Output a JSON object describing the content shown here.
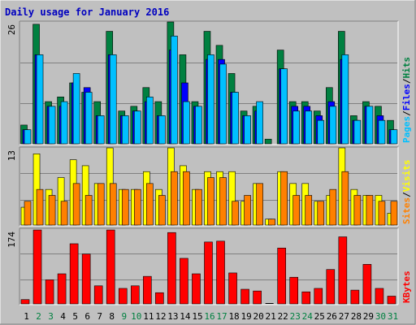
{
  "title": "Daily usage for January 2016",
  "colors": {
    "background": "#c0c0c0",
    "plot_bg": "#c0c0c0",
    "title_text": "#0000c0",
    "hits": "#008040",
    "files": "#0000ff",
    "pages": "#00c0ff",
    "visits": "#ffff00",
    "sites": "#ff8000",
    "kbytes": "#ff0000",
    "day_normal": "#000000",
    "day_weekend": "#008040"
  },
  "chart_data": [
    {
      "type": "bar",
      "name": "hits-files-pages",
      "y_max_label": "26",
      "ylim": [
        0,
        26
      ],
      "legend": [
        {
          "label": "Pages",
          "color": "#00c0ff"
        },
        {
          "label": "/",
          "color": "#000000"
        },
        {
          "label": "Files",
          "color": "#0000ff"
        },
        {
          "label": "/",
          "color": "#000000"
        },
        {
          "label": "Hits",
          "color": "#008040"
        }
      ],
      "categories": [
        "1",
        "2",
        "3",
        "4",
        "5",
        "6",
        "7",
        "8",
        "9",
        "10",
        "11",
        "12",
        "13",
        "14",
        "15",
        "16",
        "17",
        "18",
        "19",
        "20",
        "21",
        "22",
        "23",
        "24",
        "25",
        "26",
        "27",
        "28",
        "29",
        "30",
        "31"
      ],
      "series": [
        {
          "name": "Hits",
          "values": [
            4,
            25.5,
            9,
            10,
            13,
            11,
            9,
            24,
            7,
            8,
            12,
            9,
            26,
            19,
            9,
            24,
            21,
            15,
            7,
            8,
            1,
            20,
            9,
            9,
            7,
            12,
            24,
            6,
            9,
            8,
            5
          ]
        },
        {
          "name": "Files",
          "values": [
            3,
            19,
            8,
            8,
            13,
            12,
            6,
            19,
            6,
            7,
            9,
            6,
            20,
            13,
            8,
            18,
            18,
            11,
            6,
            7,
            0,
            16,
            8,
            8,
            6,
            9,
            18,
            5,
            8,
            6,
            3
          ]
        },
        {
          "name": "Pages",
          "values": [
            3,
            19,
            8,
            9,
            15,
            11,
            6,
            19,
            6,
            7,
            10,
            6,
            23,
            9,
            8,
            19,
            17,
            11,
            6,
            9,
            0,
            16,
            7,
            7,
            5,
            8,
            19,
            5,
            8,
            5,
            3
          ]
        }
      ]
    },
    {
      "type": "bar",
      "name": "visits-sites",
      "y_max_label": "13",
      "ylim": [
        0,
        13
      ],
      "legend": [
        {
          "label": "Sites",
          "color": "#ff8000"
        },
        {
          "label": "/",
          "color": "#000000"
        },
        {
          "label": "Visits",
          "color": "#ffff00"
        }
      ],
      "categories": [
        "1",
        "2",
        "3",
        "4",
        "5",
        "6",
        "7",
        "8",
        "9",
        "10",
        "11",
        "12",
        "13",
        "14",
        "15",
        "16",
        "17",
        "18",
        "19",
        "20",
        "21",
        "22",
        "23",
        "24",
        "25",
        "26",
        "27",
        "28",
        "29",
        "30",
        "31"
      ],
      "series": [
        {
          "name": "Visits",
          "values": [
            3,
            12,
            6,
            8,
            11,
            10,
            7,
            13,
            6,
            6,
            9,
            6,
            13,
            10,
            6,
            9,
            9,
            9,
            4,
            7,
            1,
            9,
            7,
            7,
            4,
            5,
            13,
            6,
            5,
            5,
            2
          ]
        },
        {
          "name": "Sites",
          "values": [
            4,
            6,
            5,
            4,
            7,
            5,
            7,
            7,
            6,
            6,
            7,
            5,
            9,
            9,
            6,
            8,
            8,
            4,
            5,
            7,
            1,
            9,
            5,
            5,
            4,
            6,
            9,
            5,
            5,
            4,
            4
          ]
        }
      ]
    },
    {
      "type": "bar",
      "name": "kbytes",
      "y_max_label": "174",
      "ylim": [
        0,
        174
      ],
      "legend": [
        {
          "label": "KBytes",
          "color": "#ff0000"
        }
      ],
      "categories": [
        "1",
        "2",
        "3",
        "4",
        "5",
        "6",
        "7",
        "8",
        "9",
        "10",
        "11",
        "12",
        "13",
        "14",
        "15",
        "16",
        "17",
        "18",
        "19",
        "20",
        "21",
        "22",
        "23",
        "24",
        "25",
        "26",
        "27",
        "28",
        "29",
        "30",
        "31"
      ],
      "series": [
        {
          "name": "KBytes",
          "values": [
            10,
            172,
            56,
            70,
            140,
            116,
            42,
            172,
            36,
            42,
            64,
            26,
            166,
            106,
            70,
            144,
            146,
            72,
            34,
            30,
            0,
            130,
            62,
            28,
            36,
            80,
            156,
            32,
            92,
            36,
            18
          ]
        }
      ]
    }
  ],
  "days": [
    {
      "label": "1",
      "weekend": false
    },
    {
      "label": "2",
      "weekend": true
    },
    {
      "label": "3",
      "weekend": true
    },
    {
      "label": "4",
      "weekend": false
    },
    {
      "label": "5",
      "weekend": false
    },
    {
      "label": "6",
      "weekend": false
    },
    {
      "label": "7",
      "weekend": false
    },
    {
      "label": "8",
      "weekend": false
    },
    {
      "label": "9",
      "weekend": true
    },
    {
      "label": "10",
      "weekend": true
    },
    {
      "label": "11",
      "weekend": false
    },
    {
      "label": "12",
      "weekend": false
    },
    {
      "label": "13",
      "weekend": false
    },
    {
      "label": "14",
      "weekend": false
    },
    {
      "label": "15",
      "weekend": false
    },
    {
      "label": "16",
      "weekend": true
    },
    {
      "label": "17",
      "weekend": true
    },
    {
      "label": "18",
      "weekend": false
    },
    {
      "label": "19",
      "weekend": false
    },
    {
      "label": "20",
      "weekend": false
    },
    {
      "label": "21",
      "weekend": false
    },
    {
      "label": "22",
      "weekend": false
    },
    {
      "label": "23",
      "weekend": true
    },
    {
      "label": "24",
      "weekend": true
    },
    {
      "label": "25",
      "weekend": false
    },
    {
      "label": "26",
      "weekend": false
    },
    {
      "label": "27",
      "weekend": false
    },
    {
      "label": "28",
      "weekend": false
    },
    {
      "label": "29",
      "weekend": false
    },
    {
      "label": "30",
      "weekend": true
    },
    {
      "label": "31",
      "weekend": true
    }
  ]
}
